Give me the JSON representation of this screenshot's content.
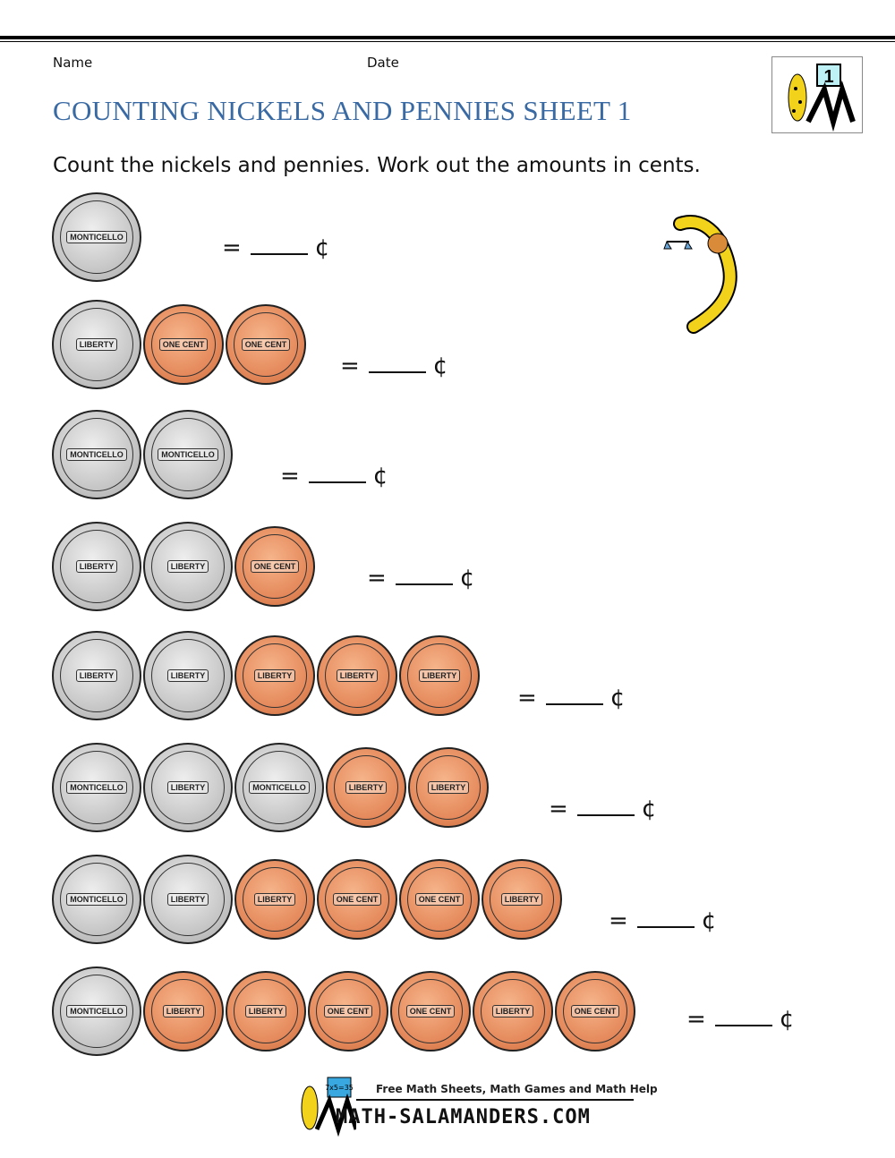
{
  "header": {
    "name_label": "Name",
    "date_label": "Date",
    "title": "COUNTING NICKELS AND PENNIES SHEET 1",
    "logo_number": "1"
  },
  "instructions": "Count the nickels and pennies. Work out the amounts in cents.",
  "coin_labels": {
    "nickel_back": "MONTICELLO",
    "nickel_front": "LIBERTY",
    "penny_back": "ONE CENT",
    "penny_front": "LIBERTY"
  },
  "answer": {
    "equals": "=",
    "unit": "¢"
  },
  "problems": [
    {
      "coins": [
        "nickel_back"
      ]
    },
    {
      "coins": [
        "nickel_front",
        "penny_back",
        "penny_back"
      ]
    },
    {
      "coins": [
        "nickel_back",
        "nickel_back"
      ]
    },
    {
      "coins": [
        "nickel_front",
        "nickel_front",
        "penny_back"
      ]
    },
    {
      "coins": [
        "nickel_front",
        "nickel_front",
        "penny_front",
        "penny_front",
        "penny_front"
      ]
    },
    {
      "coins": [
        "nickel_back",
        "nickel_front",
        "nickel_back",
        "penny_front",
        "penny_front"
      ]
    },
    {
      "coins": [
        "nickel_back",
        "nickel_front",
        "penny_front",
        "penny_back",
        "penny_back",
        "penny_front"
      ]
    },
    {
      "coins": [
        "nickel_back",
        "penny_front",
        "penny_front",
        "penny_back",
        "penny_back",
        "penny_front",
        "penny_back"
      ]
    }
  ],
  "footer": {
    "tagline": "Free Math Sheets, Math Games and Math Help",
    "site": "MATH-SALAMANDERS.COM",
    "board_text": "7x5=35"
  },
  "colors": {
    "title": "#3a6aa3",
    "nickel": "#c6c6c6",
    "penny": "#e58a5c",
    "salamander": "#f2d21b"
  }
}
